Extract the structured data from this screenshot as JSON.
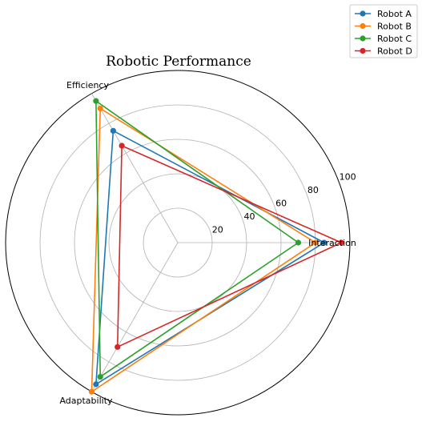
{
  "chart_data": {
    "type": "radar",
    "title": "Robotic Performance",
    "axes": [
      "Interaction",
      "Efficiency",
      "Adaptability"
    ],
    "rlim": [
      0,
      100
    ],
    "r_ticks": [
      20,
      40,
      60,
      80,
      100
    ],
    "grid": true,
    "legend_position": "top-right",
    "series": [
      {
        "name": "Robot A",
        "color": "#1f77b4",
        "values": [
          85,
          75,
          95
        ]
      },
      {
        "name": "Robot B",
        "color": "#ff7f0e",
        "values": [
          80,
          90,
          100
        ]
      },
      {
        "name": "Robot C",
        "color": "#2ca02c",
        "values": [
          70,
          95,
          90
        ]
      },
      {
        "name": "Robot D",
        "color": "#d62728",
        "values": [
          95,
          65,
          70
        ]
      }
    ]
  }
}
